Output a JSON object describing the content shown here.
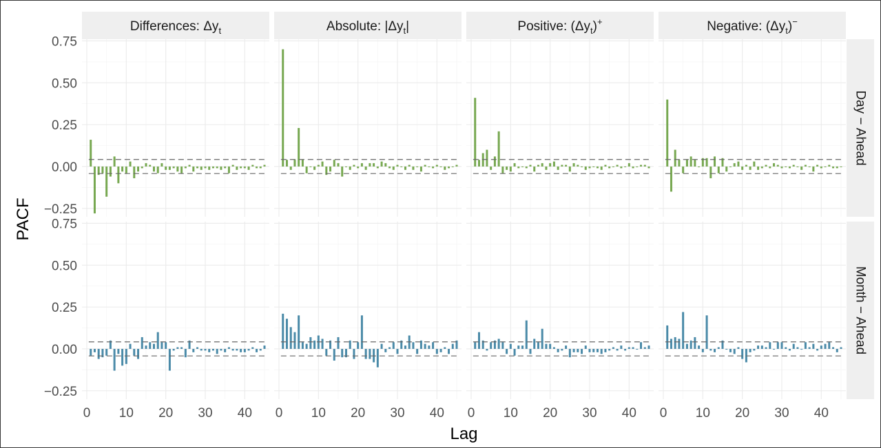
{
  "chart_data": {
    "type": "bar",
    "ylabel": "PACF",
    "xlabel": "Lag",
    "xlim": [
      0,
      45
    ],
    "ylim": [
      -0.3,
      0.76
    ],
    "x_ticks": [
      0,
      10,
      20,
      30,
      40
    ],
    "y_ticks": [
      -0.25,
      0.0,
      0.25,
      0.5,
      0.75
    ],
    "y_tick_labels": [
      "−0.25",
      "0.00",
      "0.25",
      "0.50",
      "0.75"
    ],
    "confidence_band": [
      -0.042,
      0.042
    ],
    "grid": true,
    "column_strips": [
      {
        "id": "diff",
        "label_main": "Differences: Δy",
        "sub": "t",
        "label_after": "",
        "sup": ""
      },
      {
        "id": "abs",
        "label_main": "Absolute: |Δy",
        "sub": "t",
        "label_after": "|",
        "sup": ""
      },
      {
        "id": "pos",
        "label_main": "Positive: (Δy",
        "sub": "t",
        "label_after": ")",
        "sup": "+"
      },
      {
        "id": "neg",
        "label_main": "Negative: (Δy",
        "sub": "t",
        "label_after": ")",
        "sup": "−"
      }
    ],
    "row_strips": [
      {
        "id": "day",
        "label": "Day − Ahead",
        "color": "#77a851"
      },
      {
        "id": "month",
        "label": "Month − Ahead",
        "color": "#4a8aa8"
      }
    ],
    "panels": [
      {
        "row": "day",
        "col": "diff",
        "values": [
          0.16,
          -0.28,
          -0.05,
          -0.04,
          -0.18,
          -0.06,
          0.06,
          -0.1,
          -0.03,
          -0.04,
          0.03,
          -0.07,
          -0.03,
          -0.01,
          0.02,
          0.01,
          -0.03,
          -0.04,
          0.02,
          -0.02,
          -0.02,
          -0.01,
          -0.03,
          -0.04,
          -0.01,
          0.01,
          -0.03,
          -0.01,
          -0.02,
          -0.01,
          -0.02,
          -0.01,
          -0.01,
          -0.02,
          -0.01,
          -0.04,
          0.01,
          -0.02,
          -0.01,
          -0.01,
          -0.02,
          0.01,
          -0.01,
          -0.01,
          0.01
        ]
      },
      {
        "row": "day",
        "col": "abs",
        "values": [
          0.7,
          0.04,
          -0.02,
          0.04,
          0.23,
          0.04,
          -0.04,
          0.0,
          -0.02,
          0.01,
          0.03,
          -0.05,
          -0.03,
          0.04,
          0.02,
          -0.06,
          0.0,
          -0.02,
          0.01,
          -0.01,
          0.02,
          -0.02,
          0.02,
          0.02,
          -0.01,
          0.03,
          0.02,
          -0.01,
          -0.02,
          0.01,
          0.0,
          -0.02,
          0.01,
          -0.02,
          0.0,
          -0.03,
          0.01,
          0.0,
          -0.01,
          0.01,
          0.0,
          -0.02,
          -0.01,
          0.0,
          0.01
        ]
      },
      {
        "row": "day",
        "col": "pos",
        "values": [
          0.41,
          0.04,
          0.08,
          0.1,
          -0.02,
          0.06,
          0.21,
          -0.04,
          -0.02,
          -0.03,
          0.02,
          -0.01,
          0.0,
          -0.01,
          0.01,
          -0.03,
          0.01,
          0.02,
          -0.02,
          0.02,
          0.03,
          -0.02,
          0.01,
          0.01,
          -0.03,
          0.02,
          0.01,
          0.0,
          -0.02,
          -0.01,
          0.0,
          -0.01,
          -0.02,
          0.01,
          -0.01,
          0.0,
          0.01,
          -0.01,
          0.0,
          0.02,
          -0.01,
          0.0,
          0.01,
          0.01,
          -0.01
        ]
      },
      {
        "row": "day",
        "col": "neg",
        "values": [
          0.4,
          -0.15,
          0.1,
          0.04,
          -0.04,
          0.04,
          0.06,
          0.04,
          0.0,
          0.05,
          0.05,
          -0.07,
          0.06,
          -0.04,
          0.05,
          -0.03,
          0.0,
          0.02,
          0.03,
          -0.02,
          0.01,
          -0.02,
          0.03,
          -0.02,
          -0.01,
          0.01,
          -0.01,
          0.02,
          0.01,
          -0.01,
          0.0,
          -0.01,
          0.01,
          0.0,
          -0.02,
          0.01,
          0.0,
          -0.03,
          0.01,
          -0.01,
          0.0,
          0.01,
          -0.01,
          -0.01,
          0.0
        ]
      },
      {
        "row": "month",
        "col": "diff",
        "values": [
          -0.04,
          -0.02,
          -0.06,
          -0.05,
          -0.04,
          0.05,
          -0.13,
          -0.03,
          -0.1,
          -0.09,
          0.03,
          -0.04,
          -0.06,
          0.07,
          0.02,
          0.04,
          0.03,
          0.1,
          0.04,
          0.04,
          -0.13,
          -0.01,
          0.01,
          0.01,
          -0.05,
          0.05,
          -0.02,
          0.01,
          -0.01,
          -0.01,
          -0.02,
          -0.01,
          -0.03,
          -0.01,
          -0.02,
          0.01,
          -0.01,
          -0.01,
          -0.02,
          -0.02,
          -0.01,
          0.01,
          -0.02,
          -0.01,
          0.02
        ]
      },
      {
        "row": "month",
        "col": "abs",
        "values": [
          0.21,
          0.18,
          0.13,
          0.1,
          0.2,
          0.04,
          0.03,
          0.07,
          0.05,
          0.08,
          0.06,
          -0.04,
          0.05,
          -0.07,
          0.07,
          -0.05,
          -0.05,
          0.05,
          -0.06,
          0.04,
          0.2,
          -0.06,
          -0.06,
          -0.08,
          -0.11,
          0.03,
          -0.02,
          0.01,
          0.04,
          -0.03,
          0.05,
          0.02,
          0.08,
          0.04,
          -0.03,
          0.05,
          0.03,
          0.02,
          0.04,
          -0.03,
          -0.02,
          0.01,
          -0.03,
          0.03,
          0.05
        ]
      },
      {
        "row": "month",
        "col": "pos",
        "values": [
          0.04,
          0.1,
          0.05,
          -0.01,
          0.04,
          0.05,
          0.06,
          0.04,
          -0.03,
          0.03,
          -0.04,
          0.02,
          0.02,
          0.17,
          -0.03,
          0.06,
          0.04,
          0.12,
          0.03,
          0.03,
          0.01,
          -0.02,
          -0.01,
          0.02,
          -0.05,
          -0.02,
          -0.02,
          -0.03,
          0.02,
          -0.02,
          -0.02,
          -0.02,
          -0.03,
          -0.02,
          -0.01,
          0.01,
          -0.01,
          0.02,
          -0.01,
          0.01,
          0.01,
          0.0,
          0.04,
          0.01,
          0.02
        ]
      },
      {
        "row": "month",
        "col": "neg",
        "values": [
          0.14,
          0.06,
          0.07,
          0.06,
          0.22,
          0.03,
          0.05,
          0.07,
          0.02,
          -0.02,
          0.2,
          -0.01,
          -0.02,
          0.01,
          0.05,
          0.0,
          -0.02,
          -0.03,
          0.01,
          -0.06,
          -0.08,
          -0.02,
          -0.01,
          0.02,
          0.02,
          0.01,
          0.04,
          0.0,
          0.04,
          0.04,
          0.01,
          -0.01,
          0.03,
          0.01,
          0.0,
          0.04,
          0.01,
          0.03,
          -0.01,
          0.02,
          0.03,
          0.04,
          0.01,
          -0.02,
          0.01
        ]
      }
    ]
  }
}
